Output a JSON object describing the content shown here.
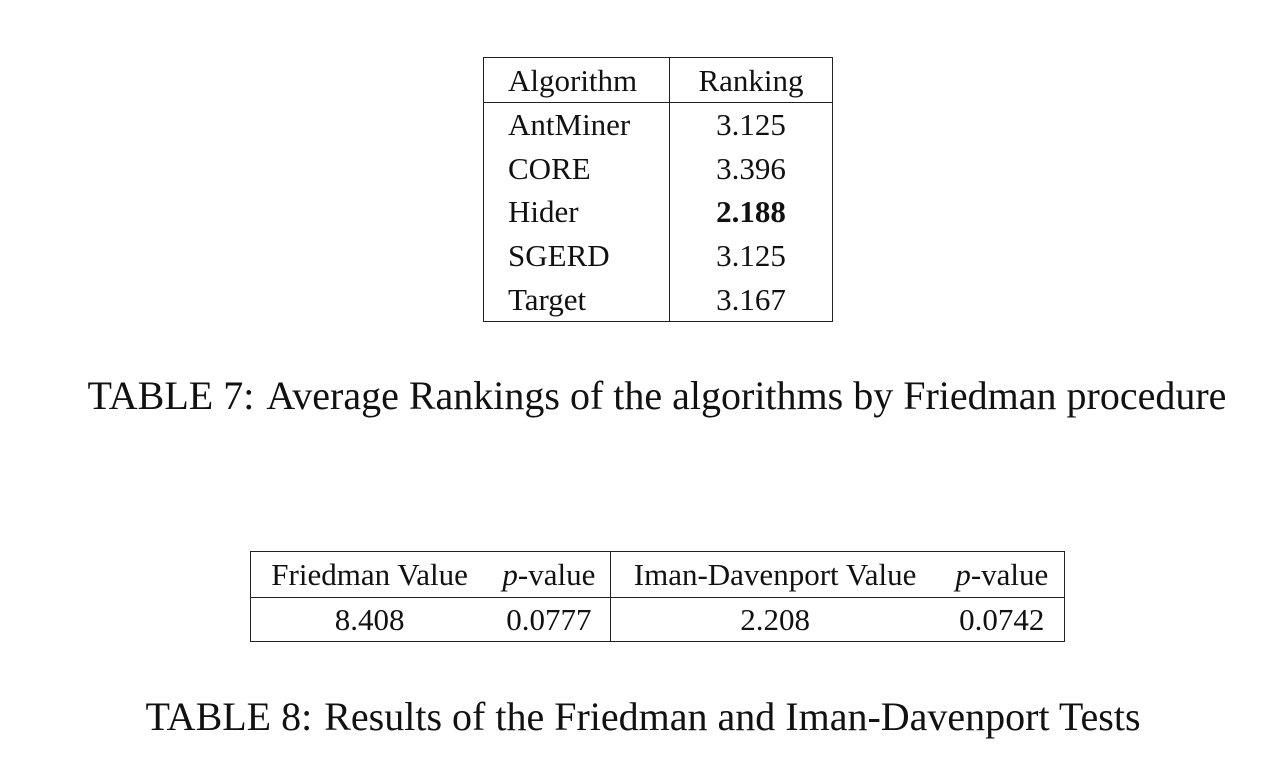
{
  "table7": {
    "headers": {
      "algorithm": "Algorithm",
      "ranking": "Ranking"
    },
    "rows": [
      {
        "algorithm": "AntMiner",
        "ranking": "3.125",
        "best": false
      },
      {
        "algorithm": "CORE",
        "ranking": "3.396",
        "best": false
      },
      {
        "algorithm": "Hider",
        "ranking": "2.188",
        "best": true
      },
      {
        "algorithm": "SGERD",
        "ranking": "3.125",
        "best": false
      },
      {
        "algorithm": "Target",
        "ranking": "3.167",
        "best": false
      }
    ],
    "caption_label": "TABLE 7:",
    "caption_text": "Average Rankings of the algorithms by Friedman procedure"
  },
  "table8": {
    "headers": {
      "friedman_value": "Friedman Value",
      "p_symbol_1": "p",
      "p_suffix_1": "-value",
      "iman_davenport_value": "Iman-Davenport Value",
      "p_symbol_2": "p",
      "p_suffix_2": "-value"
    },
    "values": {
      "friedman_value": "8.408",
      "friedman_p": "0.0777",
      "iman_davenport_value": "2.208",
      "iman_davenport_p": "0.0742"
    },
    "caption_label": "TABLE 8:",
    "caption_text": "Results of the Friedman and Iman-Davenport Tests"
  }
}
